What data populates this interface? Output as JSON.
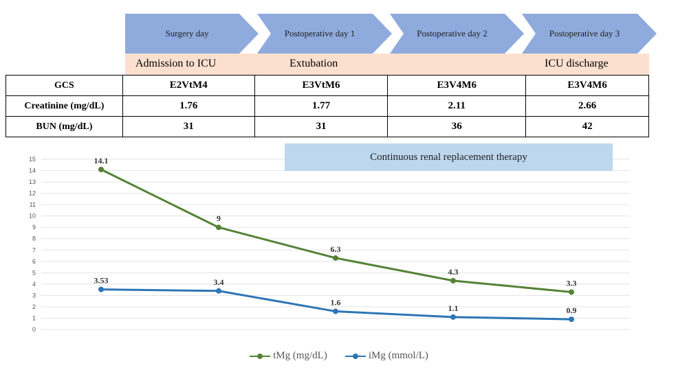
{
  "timeline": [
    {
      "label": "Surgery day",
      "event": "Admission to ICU"
    },
    {
      "label": "Postoperative day 1",
      "event": "Extubation"
    },
    {
      "label": "Postoperative day 2",
      "event": ""
    },
    {
      "label": "Postoperative day 3",
      "event": "ICU discharge"
    }
  ],
  "table": {
    "rows": [
      {
        "label": "GCS",
        "values": [
          "E2VtM4",
          "E3VtM6",
          "E3V4M6",
          "E3V4M6"
        ]
      },
      {
        "label": "Creatinine (mg/dL)",
        "values": [
          "1.76",
          "1.77",
          "2.11",
          "2.66"
        ]
      },
      {
        "label": "BUN (mg/dL)",
        "values": [
          "31",
          "31",
          "36",
          "42"
        ]
      }
    ]
  },
  "annotation": "Continuous renal replacement therapy",
  "colors": {
    "tMg": "#548235",
    "iMg": "#2e75b6",
    "arrow": "#8faadc",
    "band": "#fbe0cf",
    "crrt": "#bdd7ee"
  },
  "chart_data": {
    "type": "line",
    "x": [
      1,
      2,
      3,
      4,
      5
    ],
    "ylim": [
      0,
      15
    ],
    "yticks": [
      "0",
      "1",
      "2",
      "3",
      "4",
      "5",
      "6",
      "7",
      "8",
      "9",
      "10",
      "11",
      "12",
      "13",
      "14",
      "15"
    ],
    "grid": true,
    "legend_position": "bottom",
    "series": [
      {
        "name": "tMg (mg/dL)",
        "values": [
          14.1,
          9,
          6.3,
          4.3,
          3.3
        ],
        "labels": [
          "14.1",
          "9",
          "6.3",
          "4.3",
          "3.3"
        ]
      },
      {
        "name": "iMg (mmol/L)",
        "values": [
          3.53,
          3.4,
          1.6,
          1.1,
          0.9
        ],
        "labels": [
          "3.53",
          "3.4",
          "1.6",
          "1.1",
          "0.9"
        ]
      }
    ]
  }
}
